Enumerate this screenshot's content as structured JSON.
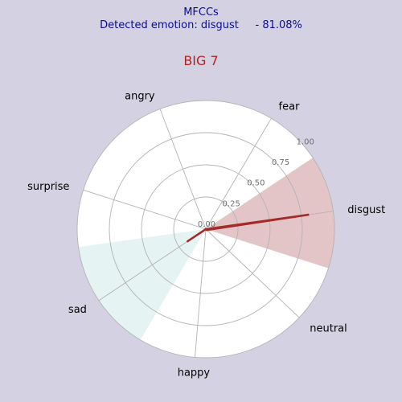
{
  "header": {
    "title_line1": "MFCCs",
    "title_line2": "Detected emotion: disgust     - 81.08%"
  },
  "chart_data": {
    "type": "radar",
    "title": "BIG 7",
    "categories": [
      "disgust",
      "fear",
      "angry",
      "surprise",
      "sad",
      "happy",
      "neutral"
    ],
    "values": [
      0.81,
      0.0,
      0.0,
      0.0,
      0.17,
      0.0,
      0.01
    ],
    "rlim": [
      0,
      1.0
    ],
    "rticks": [
      0.0,
      0.25,
      0.5,
      0.75,
      1.0
    ],
    "rtick_labels": [
      "0.00",
      "0.25",
      "0.50",
      "0.75",
      "1.00"
    ],
    "highlight": {
      "disgust": "#e3c5c8",
      "sad": "#e6f3f3"
    },
    "line_color": "#a52a2a",
    "grid": true
  }
}
